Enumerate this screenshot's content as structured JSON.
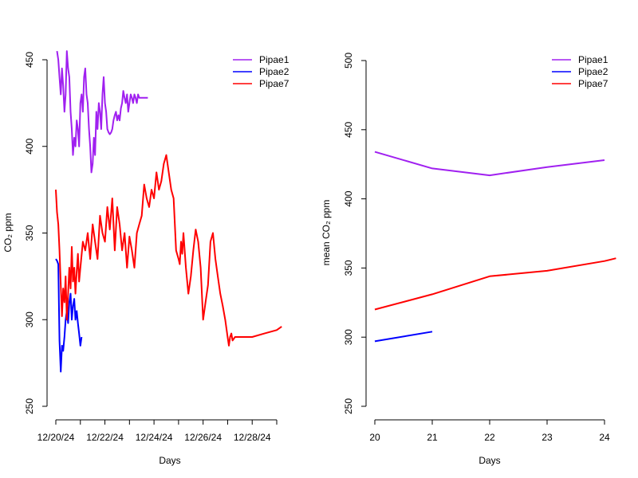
{
  "colors": {
    "Pipae1": "#a020f0",
    "Pipae2": "#0000ff",
    "Pipae7": "#ff0000"
  },
  "chart_data": [
    {
      "type": "line",
      "xlabel": "Days",
      "ylabel": "CO₂ ppm",
      "ylim": [
        250,
        460
      ],
      "yticks": [
        250,
        300,
        350,
        400,
        450
      ],
      "xlim": [
        0,
        9
      ],
      "xticks": [
        0,
        1,
        2,
        3,
        4,
        5,
        6,
        7,
        8,
        9
      ],
      "xtick_labels": [
        "12/20/24",
        "",
        "12/22/24",
        "",
        "12/24/24",
        "",
        "12/26/24",
        "",
        "12/28/24",
        ""
      ],
      "legend": [
        "Pipae1",
        "Pipae2",
        "Pipae7"
      ],
      "legend_position": "top-right",
      "series": [
        {
          "name": "Pipae1",
          "x": [
            0.05,
            0.1,
            0.15,
            0.2,
            0.25,
            0.3,
            0.35,
            0.4,
            0.45,
            0.5,
            0.55,
            0.6,
            0.65,
            0.7,
            0.75,
            0.8,
            0.85,
            0.9,
            0.95,
            1.0,
            1.05,
            1.1,
            1.15,
            1.2,
            1.25,
            1.3,
            1.35,
            1.4,
            1.45,
            1.5,
            1.55,
            1.6,
            1.65,
            1.7,
            1.75,
            1.8,
            1.85,
            1.9,
            1.95,
            2.0,
            2.05,
            2.1,
            2.15,
            2.2,
            2.25,
            2.3,
            2.35,
            2.4,
            2.45,
            2.5,
            2.55,
            2.6,
            2.65,
            2.7,
            2.75,
            2.8,
            2.85,
            2.9,
            2.95,
            3.0,
            3.05,
            3.1,
            3.15,
            3.2,
            3.25,
            3.3,
            3.35,
            3.4,
            3.45,
            3.5,
            3.55,
            3.6,
            3.65,
            3.7,
            3.75
          ],
          "y": [
            455,
            450,
            440,
            430,
            445,
            435,
            420,
            430,
            455,
            445,
            440,
            420,
            410,
            395,
            405,
            400,
            415,
            410,
            400,
            425,
            430,
            420,
            440,
            445,
            430,
            425,
            410,
            400,
            385,
            390,
            405,
            395,
            420,
            410,
            425,
            420,
            410,
            430,
            440,
            425,
            420,
            410,
            408,
            407,
            408,
            410,
            415,
            418,
            420,
            415,
            418,
            415,
            422,
            425,
            432,
            428,
            425,
            430,
            420,
            425,
            430,
            428,
            425,
            430,
            428,
            425,
            430,
            428,
            428,
            428,
            428,
            428,
            428,
            428,
            428
          ]
        },
        {
          "name": "Pipae2",
          "x": [
            0.0,
            0.05,
            0.1,
            0.15,
            0.2,
            0.25,
            0.3,
            0.35,
            0.4,
            0.45,
            0.5,
            0.55,
            0.6,
            0.65,
            0.7,
            0.75,
            0.8,
            0.85,
            0.9,
            0.95,
            1.0,
            1.05
          ],
          "y": [
            335,
            334,
            332,
            288,
            270,
            285,
            282,
            290,
            300,
            305,
            298,
            310,
            315,
            300,
            308,
            312,
            300,
            305,
            298,
            292,
            285,
            290
          ]
        },
        {
          "name": "Pipae7",
          "x": [
            0.0,
            0.05,
            0.1,
            0.15,
            0.2,
            0.25,
            0.3,
            0.35,
            0.4,
            0.45,
            0.5,
            0.55,
            0.6,
            0.65,
            0.7,
            0.75,
            0.8,
            0.85,
            0.9,
            0.95,
            1.0,
            1.1,
            1.2,
            1.3,
            1.4,
            1.5,
            1.6,
            1.7,
            1.8,
            1.9,
            2.0,
            2.1,
            2.2,
            2.3,
            2.4,
            2.5,
            2.6,
            2.7,
            2.8,
            2.9,
            3.0,
            3.1,
            3.2,
            3.3,
            3.4,
            3.5,
            3.6,
            3.7,
            3.8,
            3.9,
            4.0,
            4.1,
            4.2,
            4.3,
            4.4,
            4.5,
            4.6,
            4.7,
            4.8,
            4.9,
            5.0,
            5.05,
            5.1,
            5.15,
            5.2,
            5.3,
            5.4,
            5.5,
            5.6,
            5.7,
            5.8,
            5.9,
            6.0,
            6.1,
            6.2,
            6.3,
            6.4,
            6.5,
            6.6,
            6.7,
            6.8,
            6.9,
            7.0,
            7.05,
            7.1,
            7.15,
            7.2,
            7.3,
            7.5,
            8.0,
            8.5,
            9.0,
            9.2
          ],
          "y": [
            375,
            362,
            355,
            340,
            320,
            302,
            318,
            310,
            325,
            300,
            315,
            330,
            318,
            342,
            322,
            330,
            315,
            328,
            338,
            322,
            330,
            345,
            340,
            350,
            335,
            355,
            345,
            335,
            360,
            350,
            345,
            365,
            352,
            370,
            340,
            365,
            355,
            340,
            350,
            330,
            348,
            340,
            330,
            350,
            355,
            360,
            378,
            370,
            365,
            375,
            370,
            385,
            375,
            380,
            390,
            395,
            385,
            375,
            370,
            340,
            335,
            332,
            345,
            338,
            350,
            330,
            315,
            325,
            340,
            352,
            345,
            330,
            300,
            310,
            320,
            345,
            350,
            335,
            325,
            315,
            308,
            300,
            290,
            285,
            290,
            292,
            288,
            290,
            290,
            290,
            292,
            294,
            296
          ]
        }
      ]
    },
    {
      "type": "line",
      "xlabel": "Days",
      "ylabel": "mean CO₂ ppm",
      "ylim": [
        250,
        500
      ],
      "yticks": [
        250,
        300,
        350,
        400,
        450,
        500
      ],
      "xlim": [
        20,
        24
      ],
      "xticks": [
        20,
        21,
        22,
        23,
        24
      ],
      "xtick_labels": [
        "20",
        "21",
        "22",
        "23",
        "24"
      ],
      "legend": [
        "Pipae1",
        "Pipae2",
        "Pipae7"
      ],
      "legend_position": "top-right",
      "series": [
        {
          "name": "Pipae1",
          "x": [
            20,
            21,
            22,
            23,
            24
          ],
          "y": [
            434,
            422,
            417,
            423,
            428
          ]
        },
        {
          "name": "Pipae2",
          "x": [
            20,
            21
          ],
          "y": [
            297,
            304
          ]
        },
        {
          "name": "Pipae7",
          "x": [
            20,
            21,
            22,
            23,
            24,
            24.2
          ],
          "y": [
            320,
            331,
            344,
            348,
            355,
            357
          ]
        }
      ]
    }
  ]
}
